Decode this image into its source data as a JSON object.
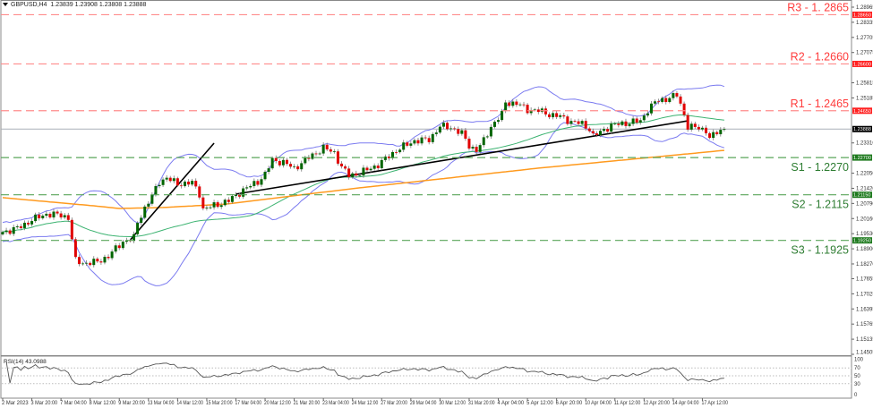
{
  "header": {
    "symbol": "GBPUSD,H4",
    "ohlc": "1.23839 1.23908 1.23808 1.23888"
  },
  "colors": {
    "resistance": "#ff8c8c",
    "resistance_text": "#ff3b3b",
    "support": "#5aa55a",
    "support_text": "#2e7d32",
    "bull": "#006400",
    "bear": "#e00000",
    "bands": "#7b7bf0",
    "ma_fast": "#3cb371",
    "ma_slow": "#ff9a1e",
    "trend": "#000000"
  },
  "chart_data": {
    "type": "candlestick",
    "title": "GBPUSD,H4",
    "ylim": [
      1.14505,
      1.28965
    ],
    "y_ticks": [
      "1.28965",
      "1.28335",
      "1.27705",
      "1.27075",
      "1.26445",
      "1.25815",
      "1.25185",
      "1.24555",
      "1.23925",
      "1.23310",
      "1.22680",
      "1.22050",
      "1.21420",
      "1.20790",
      "1.20160",
      "1.19530",
      "1.18900",
      "1.18270",
      "1.17655",
      "1.17025",
      "1.16395",
      "1.15765",
      "1.15135",
      "1.14505"
    ],
    "x_labels": [
      "2 Mar 2023",
      "3 Mar 20:00",
      "7 Mar 04:00",
      "8 Mar 12:00",
      "9 Mar 20:00",
      "13 Mar 04:00",
      "14 Mar 12:00",
      "15 Mar 20:00",
      "17 Mar 04:00",
      "20 Mar 12:00",
      "21 Mar 20:00",
      "23 Mar 04:00",
      "24 Mar 12:00",
      "27 Mar 20:00",
      "29 Mar 04:00",
      "30 Mar 12:00",
      "31 Mar 20:00",
      "4 Apr 04:00",
      "5 Apr 12:00",
      "6 Apr 20:00",
      "10 Apr 04:00",
      "11 Apr 12:00",
      "12 Apr 20:00",
      "14 Apr 04:00",
      "17 Apr 12:00"
    ],
    "bars_per_label": 8,
    "bar_count": 199,
    "current_price": {
      "value": 1.23888,
      "tag": "1.23888"
    },
    "levels": [
      {
        "name": "R3 - 1. 2865",
        "value": 1.2865,
        "tag": "1.28650",
        "kind": "resistance"
      },
      {
        "name": "R2 - 1.2660",
        "value": 1.266,
        "tag": "1.26600",
        "kind": "resistance"
      },
      {
        "name": "R1 - 1.2465",
        "value": 1.2465,
        "tag": "1.24650",
        "kind": "resistance"
      },
      {
        "name": "S1 - 1.2270",
        "value": 1.227,
        "tag": "1.22700",
        "kind": "support"
      },
      {
        "name": "S2 - 1.2115",
        "value": 1.2115,
        "tag": "1.21150",
        "kind": "support"
      },
      {
        "name": "S3 - 1.1925",
        "value": 1.1925,
        "tag": "1.19250",
        "kind": "support"
      }
    ],
    "close_keypoints": [
      [
        0,
        1.196
      ],
      [
        4,
        1.1975
      ],
      [
        8,
        1.201
      ],
      [
        12,
        1.2035
      ],
      [
        16,
        1.203
      ],
      [
        18,
        1.202
      ],
      [
        20,
        1.184
      ],
      [
        22,
        1.183
      ],
      [
        26,
        1.1835
      ],
      [
        29,
        1.186
      ],
      [
        33,
        1.192
      ],
      [
        36,
        1.1935
      ],
      [
        37,
        1.2
      ],
      [
        39,
        1.206
      ],
      [
        41,
        1.211
      ],
      [
        43,
        1.217
      ],
      [
        45,
        1.2185
      ],
      [
        48,
        1.216
      ],
      [
        52,
        1.2165
      ],
      [
        54,
        1.212
      ],
      [
        55,
        1.2055
      ],
      [
        58,
        1.207
      ],
      [
        62,
        1.209
      ],
      [
        66,
        1.2135
      ],
      [
        70,
        1.217
      ],
      [
        72,
        1.22
      ],
      [
        74,
        1.226
      ],
      [
        77,
        1.225
      ],
      [
        80,
        1.2225
      ],
      [
        84,
        1.227
      ],
      [
        88,
        1.231
      ],
      [
        91,
        1.229
      ],
      [
        93,
        1.223
      ],
      [
        95,
        1.2195
      ],
      [
        98,
        1.2205
      ],
      [
        103,
        1.224
      ],
      [
        108,
        1.23
      ],
      [
        113,
        1.234
      ],
      [
        117,
        1.2345
      ],
      [
        120,
        1.24
      ],
      [
        123,
        1.2395
      ],
      [
        126,
        1.237
      ],
      [
        128,
        1.232
      ],
      [
        130,
        1.23
      ],
      [
        132,
        1.234
      ],
      [
        134,
        1.24
      ],
      [
        137,
        1.245
      ],
      [
        138,
        1.25
      ],
      [
        141,
        1.2495
      ],
      [
        144,
        1.247
      ],
      [
        147,
        1.2465
      ],
      [
        150,
        1.245
      ],
      [
        153,
        1.244
      ],
      [
        156,
        1.242
      ],
      [
        159,
        1.241
      ],
      [
        161,
        1.239
      ],
      [
        162,
        1.236
      ],
      [
        164,
        1.2375
      ],
      [
        167,
        1.2405
      ],
      [
        170,
        1.241
      ],
      [
        173,
        1.242
      ],
      [
        175,
        1.242
      ],
      [
        177,
        1.247
      ],
      [
        179,
        1.25
      ],
      [
        182,
        1.2515
      ],
      [
        185,
        1.253
      ],
      [
        186,
        1.249
      ],
      [
        187,
        1.245
      ],
      [
        188,
        1.24
      ],
      [
        190,
        1.2395
      ],
      [
        193,
        1.2385
      ],
      [
        194,
        1.235
      ],
      [
        196,
        1.2375
      ],
      [
        198,
        1.23888
      ]
    ],
    "ma_slow_keypoints": [
      [
        0,
        1.2103
      ],
      [
        25,
        1.2069
      ],
      [
        32,
        1.2058
      ],
      [
        44,
        1.2062
      ],
      [
        61,
        1.2076
      ],
      [
        98,
        1.2144
      ],
      [
        147,
        1.2226
      ],
      [
        198,
        1.23
      ]
    ],
    "trendlines": [
      {
        "from": [
          35,
          1.1927
        ],
        "to": [
          58,
          1.233
        ]
      },
      {
        "from": [
          64,
          1.2118
        ],
        "to": [
          188,
          1.2423
        ]
      }
    ],
    "indicators": {
      "bollinger": {
        "period": 20,
        "dev": 2
      },
      "ma_fast_period": 50
    },
    "rsi": {
      "label": "RSI(14) 43.0988",
      "period": 14,
      "ylim": [
        0,
        100
      ],
      "ticks": [
        "100",
        "70",
        "50",
        "30",
        "0"
      ],
      "levels": [
        70,
        50,
        30
      ]
    }
  }
}
